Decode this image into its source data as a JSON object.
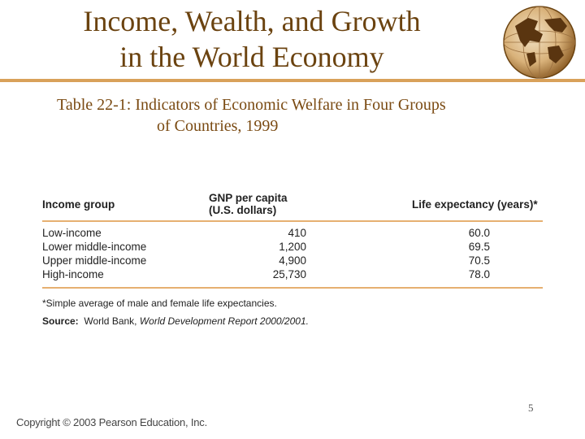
{
  "title": {
    "line1": "Income, Wealth, and Growth",
    "line2": "in the World Economy"
  },
  "subtitle": {
    "label": "Table 22-1",
    "line1_rest": ": Indicators of Economic Welfare in Four Groups",
    "line2": "of Countries, 1999"
  },
  "table": {
    "headers": [
      "Income group",
      "GNP per capita (U.S. dollars)",
      "Life expectancy (years)*"
    ],
    "rows": [
      [
        "Low-income",
        "410",
        "60.0"
      ],
      [
        "Lower middle-income",
        "1,200",
        "69.5"
      ],
      [
        "Upper middle-income",
        "4,900",
        "70.5"
      ],
      [
        "High-income",
        "25,730",
        "78.0"
      ]
    ]
  },
  "notes": {
    "footnote": "*Simple average of male and female life expectancies.",
    "source_label": "Source:",
    "source_text": "World Bank,",
    "source_title": "World Development Report 2000/2001."
  },
  "page_number": "5",
  "copyright": "Copyright © 2003 Pearson Education, Inc.",
  "colors": {
    "title": "#6b4310",
    "accent_rule": "#d9a15a",
    "table_rule": "#e6b071"
  },
  "icons": {
    "globe": "globe-icon"
  }
}
